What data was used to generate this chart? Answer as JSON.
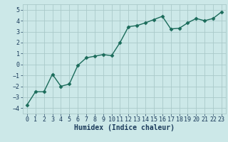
{
  "x": [
    0,
    1,
    2,
    3,
    4,
    5,
    6,
    7,
    8,
    9,
    10,
    11,
    12,
    13,
    14,
    15,
    16,
    17,
    18,
    19,
    20,
    21,
    22,
    23
  ],
  "y": [
    -3.7,
    -2.5,
    -2.5,
    -0.9,
    -2.0,
    -1.8,
    -0.1,
    0.6,
    0.75,
    0.9,
    0.8,
    2.0,
    3.45,
    3.55,
    3.8,
    4.1,
    4.4,
    3.25,
    3.3,
    3.8,
    4.2,
    4.0,
    4.2,
    4.8
  ],
  "line_color": "#1a6b5a",
  "marker": "D",
  "marker_size": 2.5,
  "bg_color": "#cce8e8",
  "grid_color": "#aacaca",
  "xlabel": "Humidex (Indice chaleur)",
  "xlabel_color": "#1a3a5a",
  "ylim": [
    -4.5,
    5.5
  ],
  "xlim": [
    -0.5,
    23.5
  ],
  "yticks": [
    -4,
    -3,
    -2,
    -1,
    0,
    1,
    2,
    3,
    4,
    5
  ],
  "xticks": [
    0,
    1,
    2,
    3,
    4,
    5,
    6,
    7,
    8,
    9,
    10,
    11,
    12,
    13,
    14,
    15,
    16,
    17,
    18,
    19,
    20,
    21,
    22,
    23
  ],
  "tick_color": "#1a3a5a",
  "font_family": "monospace",
  "tick_fontsize": 6.0,
  "xlabel_fontsize": 7.0,
  "linewidth": 1.0
}
